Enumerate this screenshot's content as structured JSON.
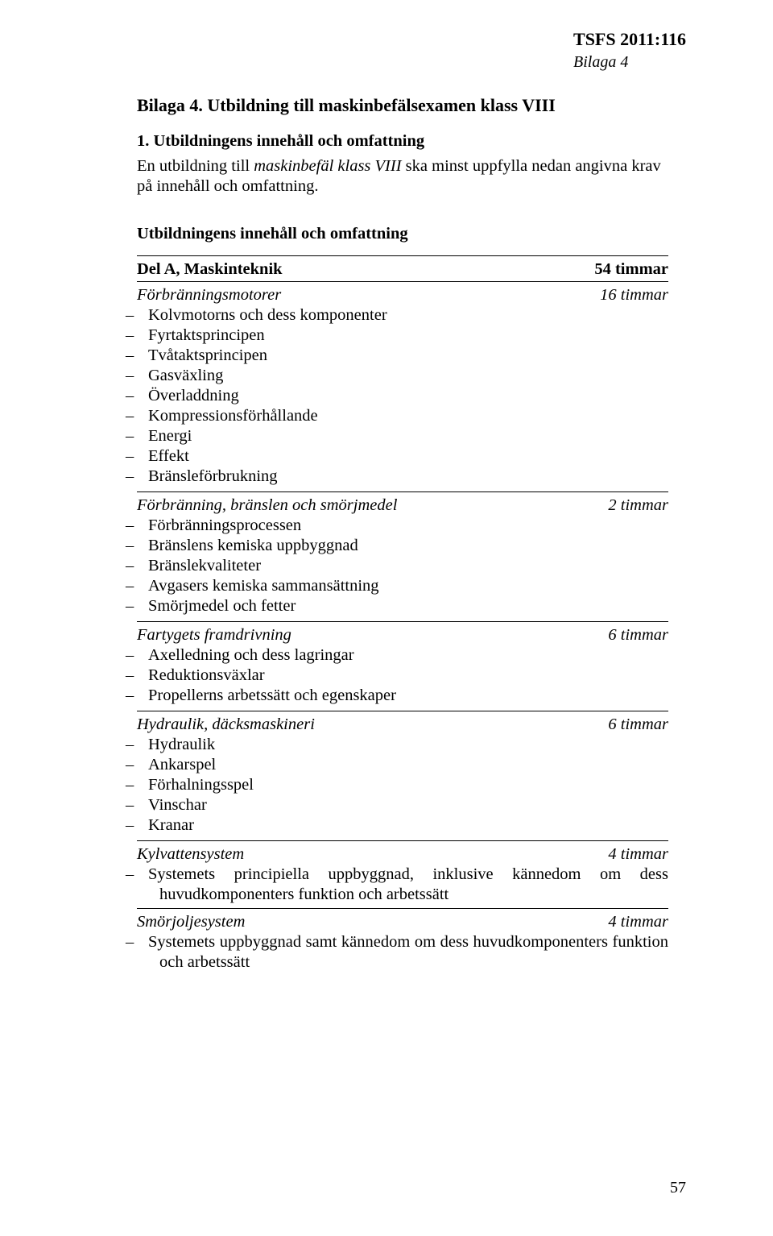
{
  "header": {
    "code": "TSFS 2011:116",
    "bilaga": "Bilaga 4"
  },
  "title": "Bilaga 4. Utbildning till maskinbefälsexamen klass VIII",
  "section1_heading": "1. Utbildningens innehåll och omfattning",
  "intro_pre": "En utbildning till ",
  "intro_em": "maskinbefäl klass VIII",
  "intro_post": " ska minst uppfylla nedan angivna krav på innehåll och omfattning.",
  "uio": "Utbildningens innehåll och omfattning",
  "delA": {
    "label": "Del A, Maskinteknik",
    "hours": "54 timmar"
  },
  "groups": [
    {
      "title": "Förbränningsmotorer",
      "hours": "16 timmar",
      "items": [
        "Kolvmotorns och dess komponenter",
        "Fyrtaktsprincipen",
        "Tvåtaktsprincipen",
        "Gasväxling",
        "Överladdning",
        "Kompressionsförhållande",
        "Energi",
        "Effekt",
        "Bränsleförbrukning"
      ]
    },
    {
      "title": "Förbränning, bränslen och smörjmedel",
      "hours": "2 timmar",
      "items": [
        "Förbränningsprocessen",
        "Bränslens kemiska uppbyggnad",
        "Bränslekvaliteter",
        "Avgasers kemiska sammansättning",
        "Smörjmedel och fetter"
      ]
    },
    {
      "title": "Fartygets framdrivning",
      "hours": "6 timmar",
      "items": [
        "Axelledning och dess lagringar",
        "Reduktionsväxlar",
        "Propellerns arbetssätt och egenskaper"
      ]
    },
    {
      "title": "Hydraulik, däcksmaskineri",
      "hours": "6 timmar",
      "items": [
        "Hydraulik",
        "Ankarspel",
        "Förhalningsspel",
        "Vinschar",
        "Kranar"
      ]
    }
  ],
  "kylvatten": {
    "title": "Kylvattensystem",
    "hours": "4 timmar",
    "para": "Systemets principiella uppbyggnad, inklusive kännedom om dess huvudkomponenters funktion och arbetssätt"
  },
  "smorjolja": {
    "title": "Smörjoljesystem",
    "hours": "4 timmar",
    "para": "Systemets uppbyggnad samt kännedom om dess huvudkomponenters funktion och arbetssätt"
  },
  "page_number": "57"
}
